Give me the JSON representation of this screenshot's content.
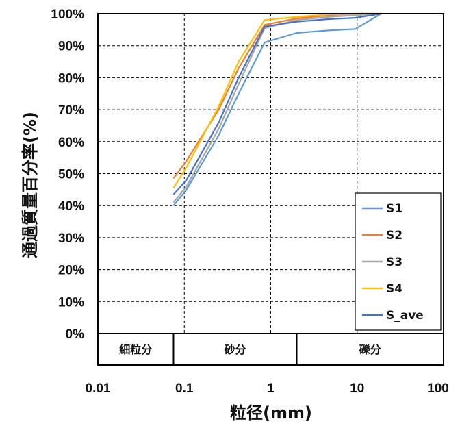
{
  "chart_data": {
    "type": "line",
    "x_scale": "log",
    "xlim": [
      0.01,
      100
    ],
    "ylim": [
      0,
      100
    ],
    "xlabel": "粒径(mm)",
    "ylabel": "通過質量百分率(%)",
    "x_tick_labels": [
      "0.01",
      "0.1",
      "1",
      "10",
      "100"
    ],
    "y_tick_labels": [
      "0%",
      "10%",
      "20%",
      "30%",
      "40%",
      "50%",
      "60%",
      "70%",
      "80%",
      "90%",
      "100%"
    ],
    "grid": "dashed",
    "legend_position": "bottom-right",
    "bands": [
      {
        "label": "細粒分",
        "from": 0.01,
        "to": 0.075
      },
      {
        "label": "砂分",
        "from": 0.075,
        "to": 2
      },
      {
        "label": "礫分",
        "from": 2,
        "to": 100
      }
    ],
    "x": [
      0.075,
      0.106,
      0.25,
      0.425,
      0.85,
      2,
      4.75,
      9.5,
      19
    ],
    "series": [
      {
        "name": "S1",
        "color": "#5B9BD5",
        "values": [
          40,
          45,
          62,
          75,
          91,
          94,
          94.8,
          95.2,
          100
        ]
      },
      {
        "name": "S2",
        "color": "#ED7D31",
        "values": [
          48.5,
          54,
          70,
          83,
          96.5,
          98.5,
          99.5,
          100,
          100
        ]
      },
      {
        "name": "S3",
        "color": "#A5A5A5",
        "values": [
          41,
          46,
          64,
          78,
          95.5,
          98,
          99,
          99.5,
          100
        ]
      },
      {
        "name": "S4",
        "color": "#FFC000",
        "values": [
          45.5,
          52,
          71,
          85,
          98,
          99,
          99.8,
          100,
          100
        ]
      },
      {
        "name": "S_ave",
        "color": "#4472C4",
        "values": [
          43.5,
          48,
          66,
          80,
          96,
          97.5,
          98.3,
          98.7,
          100
        ]
      }
    ]
  }
}
